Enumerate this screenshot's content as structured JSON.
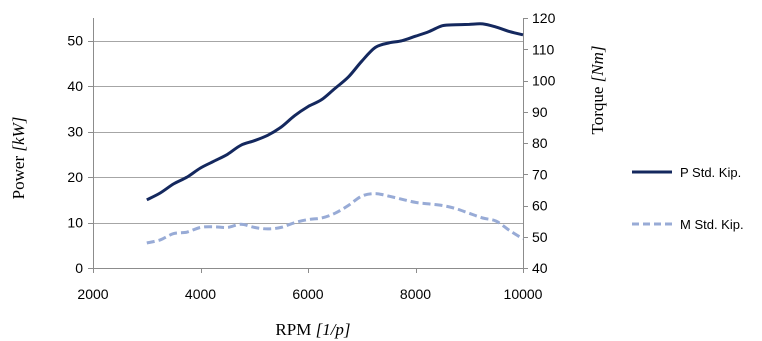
{
  "chart_data": {
    "type": "line",
    "x_axis": {
      "label_main": "RPM ",
      "label_unit": "[1/p]",
      "lim": [
        2000,
        10000
      ],
      "ticks": [
        2000,
        4000,
        6000,
        8000,
        10000
      ]
    },
    "y_axis_left": {
      "label_main": "Power ",
      "label_unit": "[kW]",
      "lim": [
        0,
        55
      ],
      "ticks": [
        0,
        10,
        20,
        30,
        40,
        50
      ]
    },
    "y_axis_right": {
      "label_main": "Torque ",
      "label_unit": "[Nm]",
      "lim": [
        40,
        120
      ],
      "ticks": [
        40,
        50,
        60,
        70,
        80,
        90,
        100,
        110,
        120
      ]
    },
    "grid": "horizontal",
    "legend_position": "right",
    "series": [
      {
        "name": "P Std. Kip.",
        "axis": "left",
        "color": "#14285e",
        "style": "solid",
        "x": [
          3000,
          3250,
          3500,
          3750,
          4000,
          4250,
          4500,
          4750,
          5000,
          5250,
          5500,
          5750,
          6000,
          6250,
          6500,
          6750,
          7000,
          7250,
          7500,
          7750,
          8000,
          8250,
          8500,
          8750,
          9000,
          9250,
          9500,
          9750,
          10000
        ],
        "values": [
          15,
          16.5,
          18.5,
          20,
          22,
          23.5,
          25,
          27,
          28,
          29.2,
          31,
          33.5,
          35.5,
          37,
          39.5,
          42,
          45.5,
          48.5,
          49.5,
          50,
          51,
          52,
          53.3,
          53.5,
          53.6,
          53.7,
          53,
          52,
          51.3
        ]
      },
      {
        "name": "M Std. Kip.",
        "axis": "right",
        "color": "#98abd6",
        "style": "dashed",
        "x": [
          3000,
          3250,
          3500,
          3750,
          4000,
          4250,
          4500,
          4750,
          5000,
          5250,
          5500,
          5750,
          6000,
          6250,
          6500,
          6750,
          7000,
          7250,
          7500,
          7750,
          8000,
          8250,
          8500,
          8750,
          9000,
          9250,
          9500,
          9750,
          10000
        ],
        "values": [
          48,
          49,
          51,
          51.5,
          53,
          53.2,
          53,
          54,
          53,
          52.5,
          53,
          54.5,
          55.5,
          56,
          57.5,
          60,
          63,
          63.8,
          63,
          62,
          61,
          60.5,
          60,
          59,
          57.5,
          56,
          55,
          52,
          49.3
        ]
      }
    ]
  }
}
